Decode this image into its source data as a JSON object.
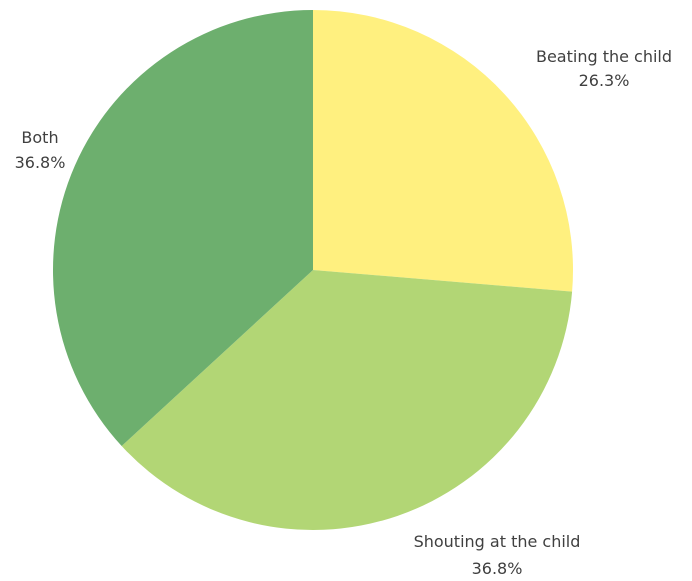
{
  "chart_data": {
    "type": "pie",
    "title": "",
    "slices": [
      {
        "label": "Beating the child",
        "value": 26.3,
        "display": "26.3%",
        "color": "#FFF07F"
      },
      {
        "label": "Shouting at the child",
        "value": 36.8,
        "display": "36.8%",
        "color": "#B2D675"
      },
      {
        "label": "Both",
        "value": 36.8,
        "display": "36.8%",
        "color": "#6DAF6E"
      }
    ],
    "start_angle": "12 o'clock",
    "direction": "clockwise",
    "legend": "none",
    "labels": "outside"
  }
}
